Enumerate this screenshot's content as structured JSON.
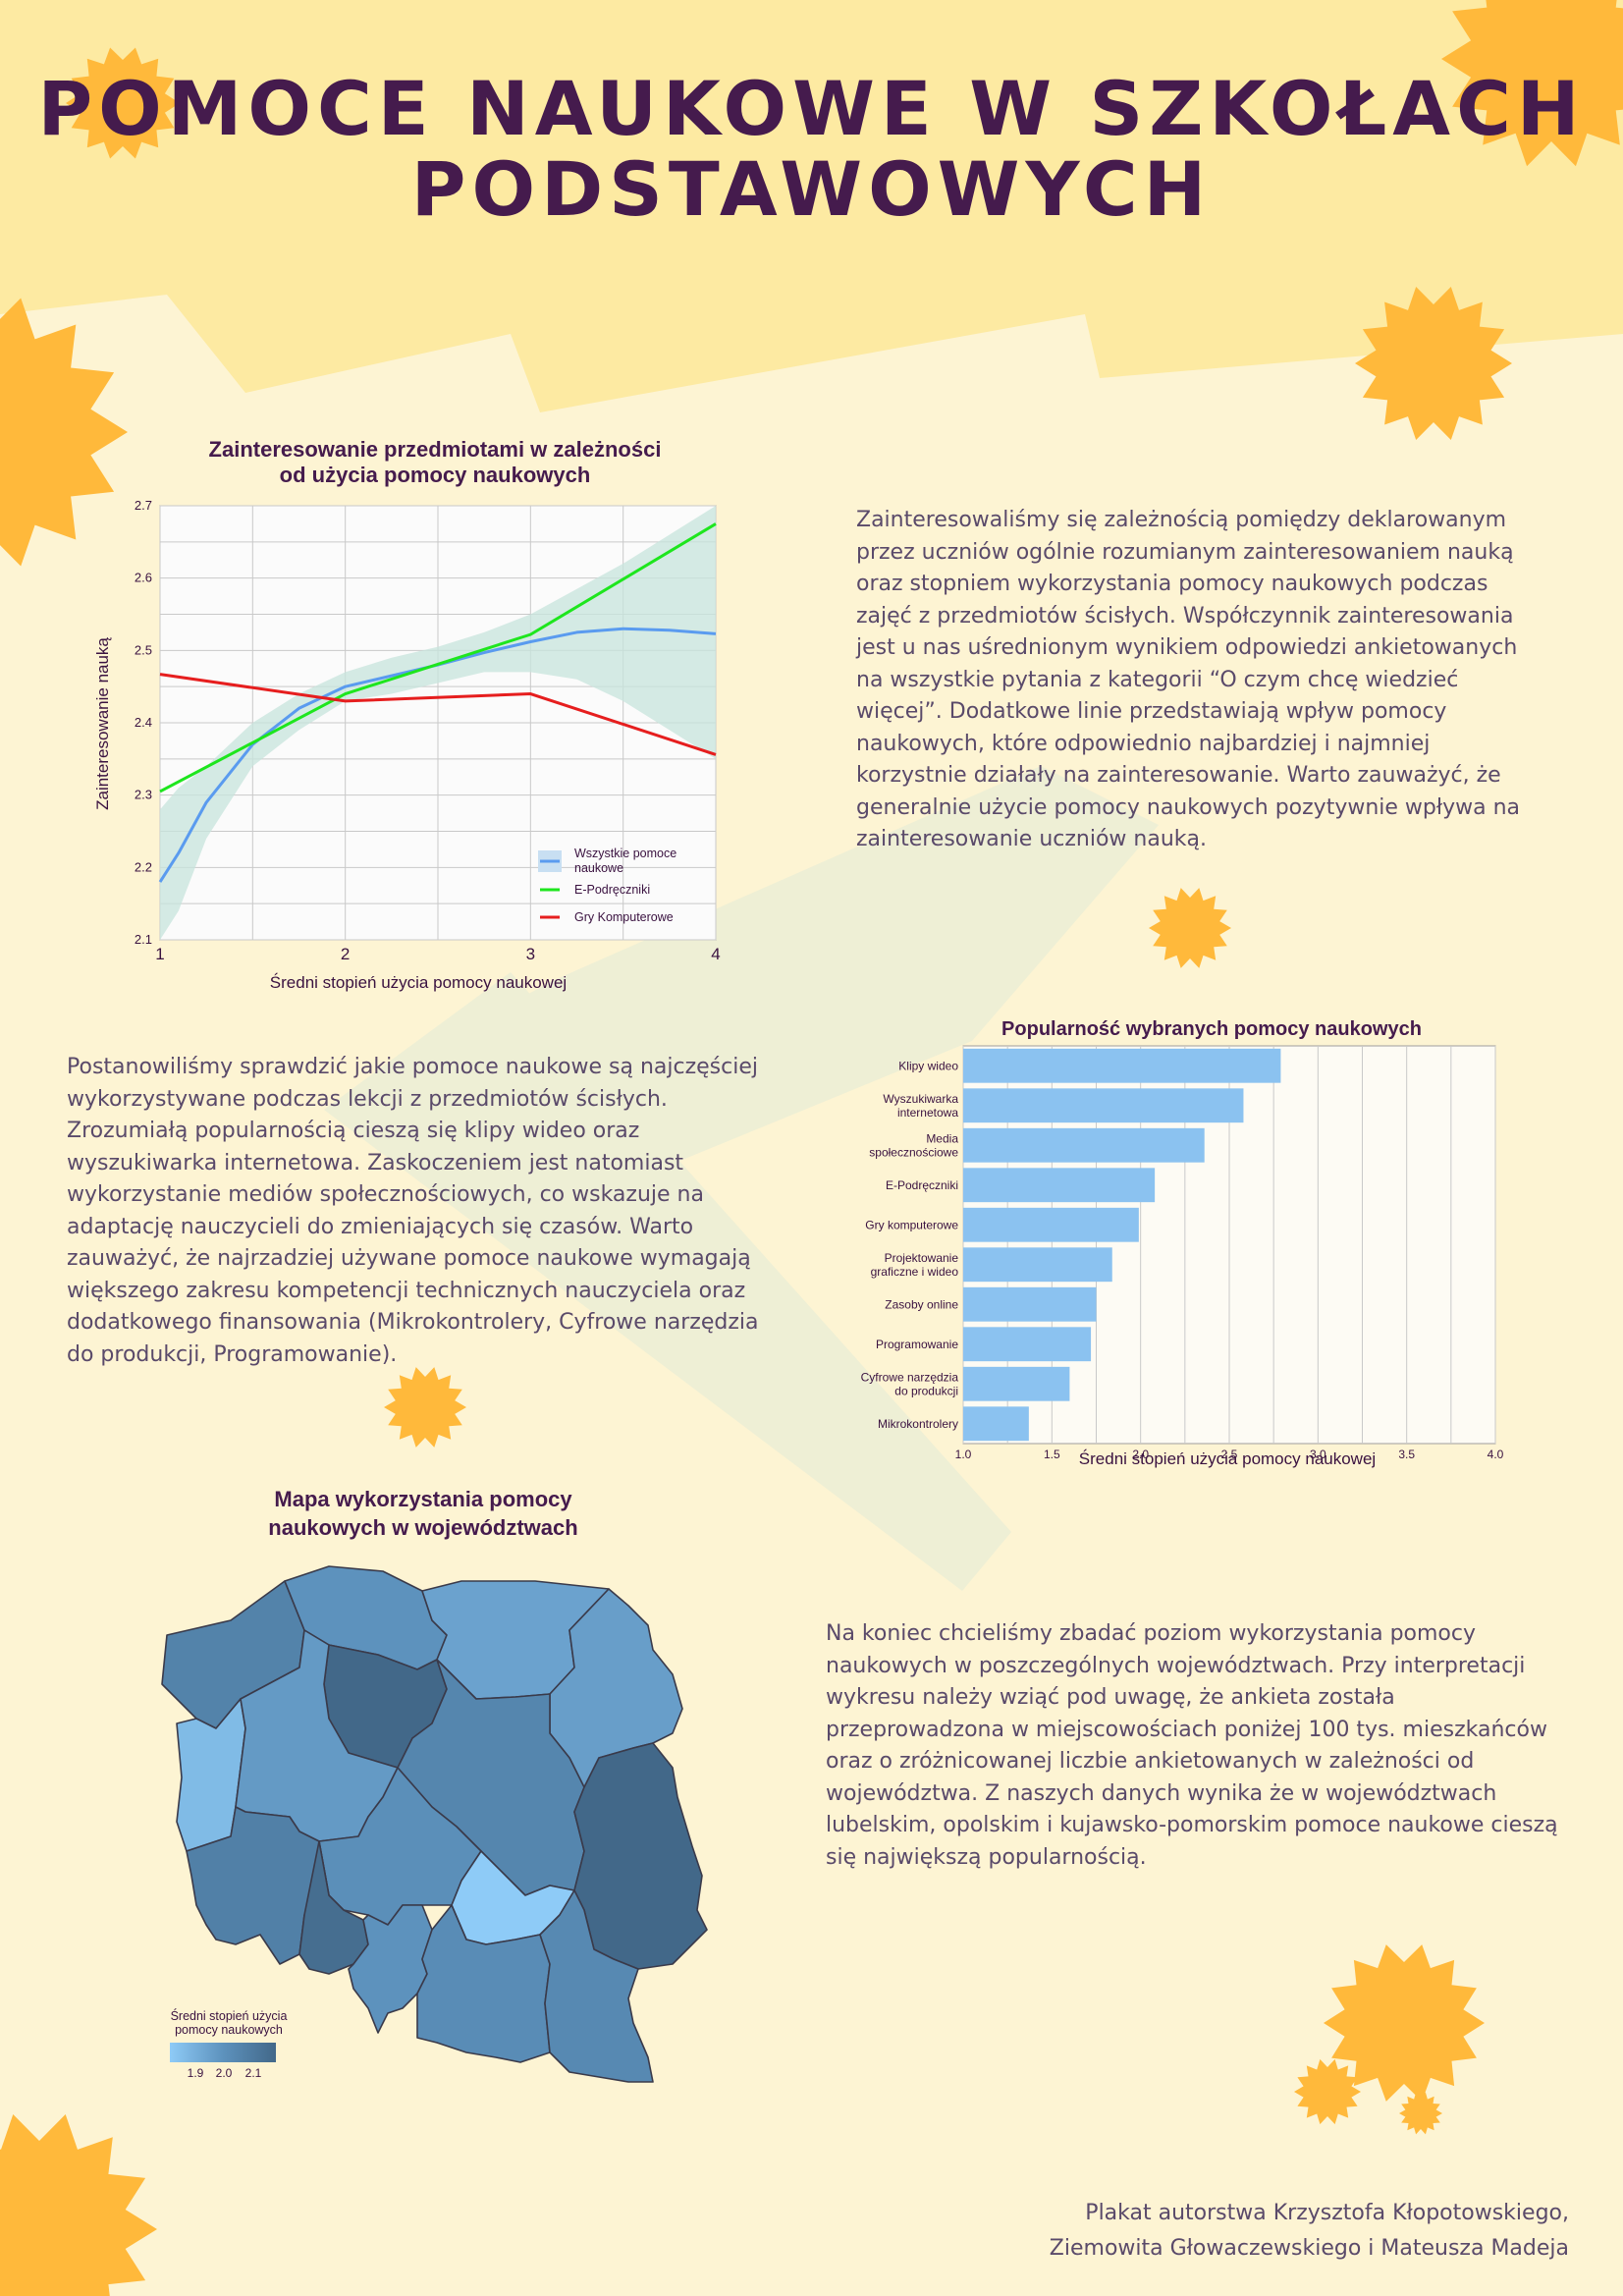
{
  "title": {
    "line1": "POMOCE NAUKOWE W SZKOŁACH",
    "line2": "PODSTAWOWYCH"
  },
  "colors": {
    "background": "#fdf4d3",
    "accent_yellow": "#ffb93b",
    "band_yellow": "#fdeaa2",
    "title": "#451b4d"
  },
  "paragraphs": {
    "p1": "Zainteresowaliśmy się zależnością pomiędzy deklarowanym przez uczniów ogólnie rozumianym zainteresowaniem nauką oraz stopniem wykorzystania pomocy naukowych podczas zajęć z przedmiotów ścisłych. Współczynnik zainteresowania jest u nas uśrednionym wynikiem odpowiedzi ankietowanych na wszystkie pytania z kategorii “O czym chcę wiedzieć więcej”. Dodatkowe linie przedstawiają wpływ pomocy naukowych, które odpowiednio najbardziej i najmniej korzystnie działały na zainteresowanie. Warto zauważyć, że generalnie użycie pomocy naukowych pozytywnie wpływa na zainteresowanie uczniów nauką.",
    "p2": "Postanowiliśmy sprawdzić jakie pomoce naukowe są najczęściej wykorzystywane podczas lekcji z przedmiotów ścisłych. Zrozumiałą popularnością cieszą się klipy wideo oraz wyszukiwarka internetowa.  Zaskoczeniem jest natomiast wykorzystanie mediów społecznościowych, co wskazuje na adaptację nauczycieli do zmieniających się czasów. Warto zauważyć, że najrzadziej używane pomoce naukowe wymagają większego zakresu kompetencji technicznych nauczyciela oraz dodatkowego finansowania (Mikrokontrolery, Cyfrowe narzędzia do produkcji, Programowanie).",
    "p3": "Na koniec chcieliśmy zbadać poziom wykorzystania pomocy naukowych w poszczególnych województwach. Przy interpretacji wykresu należy wziąć pod uwagę, że ankieta została przeprowadzona w miejscowościach poniżej 100 tys. mieszkańców oraz o zróżnicowanej liczbie ankietowanych w zależności od województwa. Z naszych danych wynika że w województwach lubelskim, opolskim i kujawsko-pomorskim pomoce naukowe cieszą się największą popularnością."
  },
  "credits": {
    "line1": "Plakat autorstwa Krzysztofa Kłopotowskiego,",
    "line2": "Ziemowita Głowaczewskiego i Mateusza Madeja"
  },
  "chart_data": [
    {
      "type": "line",
      "title": "Zainteresowanie przedmiotami w zależności od użycia pomocy naukowych",
      "title_lines": [
        "Zainteresowanie przedmiotami w zależności",
        "od użycia pomocy naukowych"
      ],
      "xlabel": "Średni stopień użycia pomocy naukowej",
      "ylabel": "Zainteresowanie nauką",
      "xlim": [
        1,
        4
      ],
      "ylim": [
        2.1,
        2.7
      ],
      "xticks": [
        1,
        2,
        3,
        4
      ],
      "yticks": [
        2.1,
        2.2,
        2.3,
        2.4,
        2.5,
        2.6,
        2.7
      ],
      "grid": true,
      "legend_position": "bottom-right",
      "series": [
        {
          "name": "Wszystkie pomoce naukowe",
          "legend_lines": [
            "Wszystkie pomoce",
            "naukowe"
          ],
          "color": "#5a9bef",
          "x": [
            1.0,
            1.1,
            1.25,
            1.5,
            1.75,
            2.0,
            2.25,
            2.5,
            2.75,
            3.0,
            3.25,
            3.5,
            3.75,
            4.0
          ],
          "y": [
            2.18,
            2.22,
            2.29,
            2.37,
            2.42,
            2.45,
            2.465,
            2.48,
            2.497,
            2.512,
            2.525,
            2.53,
            2.528,
            2.523
          ],
          "band_upper": [
            2.28,
            2.31,
            2.34,
            2.4,
            2.44,
            2.47,
            2.49,
            2.505,
            2.525,
            2.55,
            2.585,
            2.62,
            2.66,
            2.7
          ],
          "band_lower": [
            2.1,
            2.14,
            2.24,
            2.34,
            2.39,
            2.43,
            2.44,
            2.455,
            2.47,
            2.47,
            2.46,
            2.43,
            2.39,
            2.35
          ]
        },
        {
          "name": "E-Podręczniki",
          "color": "#1ee61e",
          "x": [
            1,
            2,
            3,
            4
          ],
          "y": [
            2.305,
            2.44,
            2.522,
            2.675
          ]
        },
        {
          "name": "Gry Komputerowe",
          "color": "#e61e1e",
          "x": [
            1,
            2,
            3,
            4
          ],
          "y": [
            2.467,
            2.43,
            2.44,
            2.356
          ]
        }
      ]
    },
    {
      "type": "bar",
      "orientation": "horizontal",
      "title": "Popularność wybranych pomocy naukowych",
      "xlabel": "Średni stopień użycia pomocy naukowej",
      "xlim": [
        1.0,
        4.0
      ],
      "xticks": [
        "1.0",
        "1.5",
        "2.0",
        "2.5",
        "3.0",
        "3.5",
        "4.0"
      ],
      "bar_color": "#8bc2f0",
      "categories": [
        [
          "Klipy wideo"
        ],
        [
          "Wyszukiwarka",
          "internetowa"
        ],
        [
          "Media",
          "społecznościowe"
        ],
        [
          "E-Podręczniki"
        ],
        [
          "Gry komputerowe"
        ],
        [
          "Projektowanie",
          "graficzne i wideo"
        ],
        [
          "Zasoby online"
        ],
        [
          "Programowanie"
        ],
        [
          "Cyfrowe narzędzia",
          "do produkcji"
        ],
        [
          "Mikrokontrolery"
        ]
      ],
      "values": [
        2.79,
        2.58,
        2.36,
        2.08,
        1.99,
        1.84,
        1.75,
        1.72,
        1.6,
        1.37
      ]
    },
    {
      "type": "heatmap",
      "subtype": "choropleth",
      "title_lines": [
        "Mapa wykorzystania pomocy",
        "naukowych w województwach"
      ],
      "legend_title_lines": [
        "Średni stopień użycia",
        "pomocy naukowych"
      ],
      "legend_ticks": [
        "1.9",
        "2.0",
        "2.1"
      ],
      "color_scale": [
        "#8ecbf7",
        "#5d92bd",
        "#426889"
      ],
      "regions": [
        {
          "name": "zachodniopomorskie",
          "value": 2.03
        },
        {
          "name": "pomorskie",
          "value": 1.98
        },
        {
          "name": "warmińsko-mazurskie",
          "value": 1.94
        },
        {
          "name": "podlaskie",
          "value": 1.95
        },
        {
          "name": "kujawsko-pomorskie",
          "value": 2.12
        },
        {
          "name": "lubuskie",
          "value": 1.88
        },
        {
          "name": "wielkopolskie",
          "value": 1.96
        },
        {
          "name": "mazowieckie",
          "value": 2.02
        },
        {
          "name": "lubelskie",
          "value": 2.12
        },
        {
          "name": "łódzkie",
          "value": 1.99
        },
        {
          "name": "dolnośląskie",
          "value": 2.04
        },
        {
          "name": "opolskie",
          "value": 2.1
        },
        {
          "name": "śląskie",
          "value": 1.98
        },
        {
          "name": "świętokrzyskie",
          "value": 1.84
        },
        {
          "name": "małopolskie",
          "value": 2.0
        },
        {
          "name": "podkarpackie",
          "value": 2.01
        }
      ]
    }
  ]
}
